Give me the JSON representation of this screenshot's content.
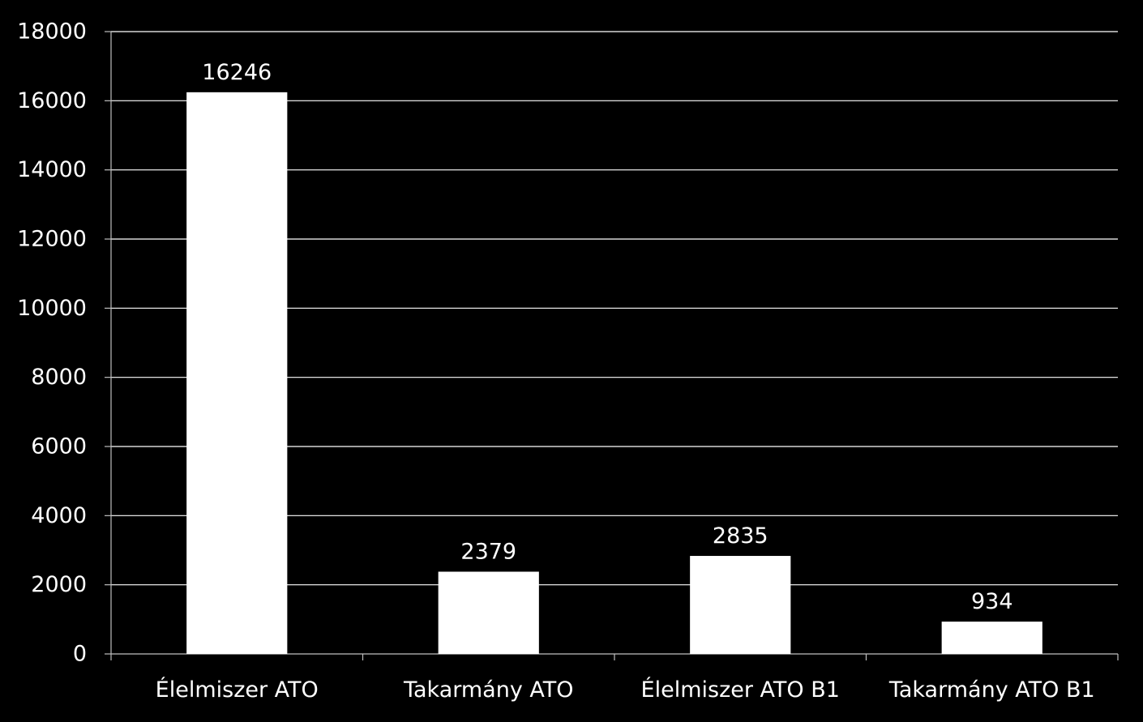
{
  "chart_data": {
    "type": "bar",
    "categories": [
      "Élelmiszer ATO",
      "Takarmány ATO",
      "Élelmiszer ATO B1",
      "Takarmány ATO B1"
    ],
    "values": [
      16246,
      2379,
      2835,
      934
    ],
    "data_labels": [
      "16246",
      "2379",
      "2835",
      "934"
    ],
    "yticks": [
      "0",
      "2000",
      "4000",
      "6000",
      "8000",
      "10000",
      "12000",
      "14000",
      "16000",
      "18000"
    ],
    "ylim": [
      0,
      18000
    ],
    "grid": true,
    "legend": "none",
    "title": "",
    "xlabel": "",
    "ylabel": "",
    "colors": {
      "background": "#000000",
      "bar": "#ffffff",
      "grid": "#ffffff",
      "axis": "#bfbfbf",
      "text": "#ffffff"
    }
  }
}
